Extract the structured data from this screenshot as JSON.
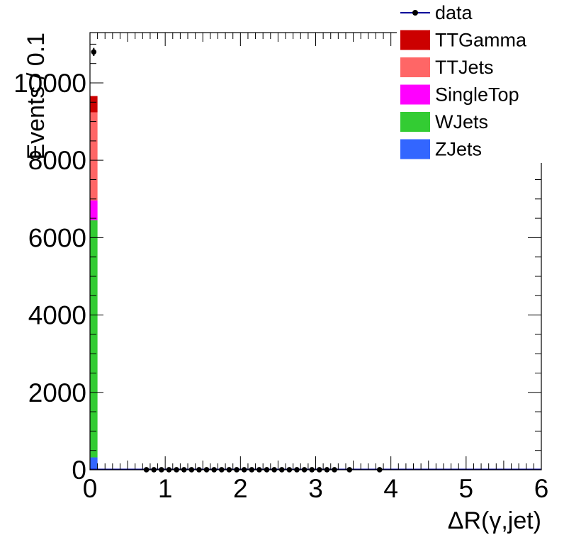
{
  "chart_data": {
    "type": "bar",
    "stacked": true,
    "xlabel": "ΔR(γ,jet)",
    "ylabel": "Events / 0.1",
    "xlim": [
      0,
      6
    ],
    "ylim": [
      0,
      11300
    ],
    "bin_width": 0.1,
    "x_ticks": [
      "0",
      "1",
      "2",
      "3",
      "4",
      "5",
      "6"
    ],
    "y_ticks": [
      "0",
      "2000",
      "4000",
      "6000",
      "8000",
      "10000"
    ],
    "legend_position": "top-right",
    "stack_bins": [
      {
        "x_low": 0.0,
        "x_high": 0.1,
        "components": [
          {
            "name": "ZJets",
            "value": 320
          },
          {
            "name": "WJets",
            "value": 6130
          },
          {
            "name": "SingleTop",
            "value": 510
          },
          {
            "name": "TTJets",
            "value": 2280
          },
          {
            "name": "TTGamma",
            "value": 420
          }
        ]
      }
    ],
    "series": [
      {
        "name": "TTGamma",
        "color": "#cc0000",
        "kind": "fill"
      },
      {
        "name": "TTJets",
        "color": "#ff6666",
        "kind": "fill"
      },
      {
        "name": "SingleTop",
        "color": "#ff00ff",
        "kind": "fill"
      },
      {
        "name": "WJets",
        "color": "#33cc33",
        "kind": "fill"
      },
      {
        "name": "ZJets",
        "color": "#3366ff",
        "kind": "fill"
      }
    ],
    "data": {
      "name": "data",
      "color": "#000000",
      "line_color": "#000099",
      "points": [
        {
          "x": 0.05,
          "y": 10800
        },
        {
          "x": 0.75,
          "y": 1
        },
        {
          "x": 0.85,
          "y": 1
        },
        {
          "x": 0.95,
          "y": 1
        },
        {
          "x": 1.05,
          "y": 1
        },
        {
          "x": 1.15,
          "y": 1
        },
        {
          "x": 1.25,
          "y": 1
        },
        {
          "x": 1.35,
          "y": 1
        },
        {
          "x": 1.45,
          "y": 1
        },
        {
          "x": 1.55,
          "y": 1
        },
        {
          "x": 1.65,
          "y": 1
        },
        {
          "x": 1.75,
          "y": 1
        },
        {
          "x": 1.85,
          "y": 1
        },
        {
          "x": 1.95,
          "y": 1
        },
        {
          "x": 2.05,
          "y": 1
        },
        {
          "x": 2.15,
          "y": 1
        },
        {
          "x": 2.25,
          "y": 1
        },
        {
          "x": 2.35,
          "y": 1
        },
        {
          "x": 2.45,
          "y": 1
        },
        {
          "x": 2.55,
          "y": 1
        },
        {
          "x": 2.65,
          "y": 1
        },
        {
          "x": 2.75,
          "y": 1
        },
        {
          "x": 2.85,
          "y": 1
        },
        {
          "x": 2.95,
          "y": 1
        },
        {
          "x": 3.05,
          "y": 1
        },
        {
          "x": 3.15,
          "y": 1
        },
        {
          "x": 3.25,
          "y": 1
        },
        {
          "x": 3.45,
          "y": 1
        },
        {
          "x": 3.85,
          "y": 1
        }
      ]
    },
    "legend": [
      {
        "label": "data",
        "color": "#000000",
        "line_color": "#000099",
        "kind": "marker"
      },
      {
        "label": "TTGamma",
        "color": "#cc0000",
        "kind": "box"
      },
      {
        "label": "TTJets",
        "color": "#ff6666",
        "kind": "box"
      },
      {
        "label": "SingleTop",
        "color": "#ff00ff",
        "kind": "box"
      },
      {
        "label": "WJets",
        "color": "#33cc33",
        "kind": "box"
      },
      {
        "label": "ZJets",
        "color": "#3366ff",
        "kind": "box"
      }
    ]
  }
}
